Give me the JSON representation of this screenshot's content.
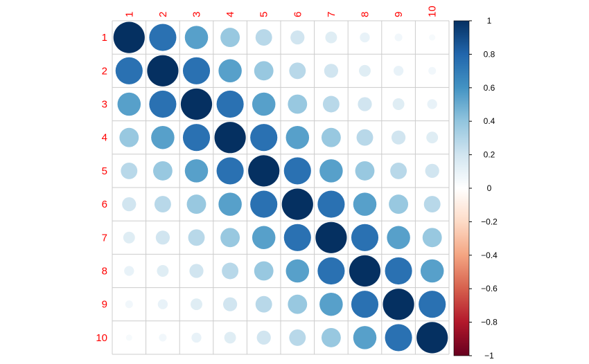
{
  "chart_data": {
    "type": "heatmap",
    "method": "circle",
    "labels": [
      "1",
      "2",
      "3",
      "4",
      "5",
      "6",
      "7",
      "8",
      "9",
      "10"
    ],
    "matrix": [
      [
        1.0,
        0.75,
        0.55,
        0.38,
        0.28,
        0.2,
        0.14,
        0.1,
        0.06,
        0.04
      ],
      [
        0.75,
        1.0,
        0.75,
        0.55,
        0.38,
        0.28,
        0.2,
        0.14,
        0.1,
        0.06
      ],
      [
        0.55,
        0.75,
        1.0,
        0.75,
        0.55,
        0.38,
        0.28,
        0.2,
        0.14,
        0.1
      ],
      [
        0.38,
        0.55,
        0.75,
        1.0,
        0.75,
        0.55,
        0.38,
        0.28,
        0.2,
        0.14
      ],
      [
        0.28,
        0.38,
        0.55,
        0.75,
        1.0,
        0.75,
        0.55,
        0.38,
        0.28,
        0.2
      ],
      [
        0.2,
        0.28,
        0.38,
        0.55,
        0.75,
        1.0,
        0.75,
        0.55,
        0.38,
        0.28
      ],
      [
        0.14,
        0.2,
        0.28,
        0.38,
        0.55,
        0.75,
        1.0,
        0.75,
        0.55,
        0.38
      ],
      [
        0.1,
        0.14,
        0.2,
        0.28,
        0.38,
        0.55,
        0.75,
        1.0,
        0.75,
        0.55
      ],
      [
        0.06,
        0.1,
        0.14,
        0.2,
        0.28,
        0.38,
        0.55,
        0.75,
        1.0,
        0.75
      ],
      [
        0.04,
        0.06,
        0.1,
        0.14,
        0.2,
        0.28,
        0.38,
        0.55,
        0.75,
        1.0
      ]
    ],
    "colorbar": {
      "range": [
        -1,
        1
      ],
      "tick_values": [
        1,
        0.8,
        0.6,
        0.4,
        0.2,
        0,
        -0.2,
        -0.4,
        -0.6,
        -0.8,
        -1
      ],
      "tick_labels": [
        "1",
        "0.8",
        "0.6",
        "0.4",
        "0.2",
        "0",
        "−0.2",
        "−0.4",
        "−0.6",
        "−0.8",
        "−1"
      ]
    },
    "label_color": "#ff0000",
    "grid_color": "#cccccc",
    "palette": [
      "#67001f",
      "#b2182b",
      "#d6604d",
      "#f4a582",
      "#fddbc7",
      "#ffffff",
      "#d1e5f0",
      "#92c5de",
      "#4393c3",
      "#2166ac",
      "#053061"
    ]
  }
}
